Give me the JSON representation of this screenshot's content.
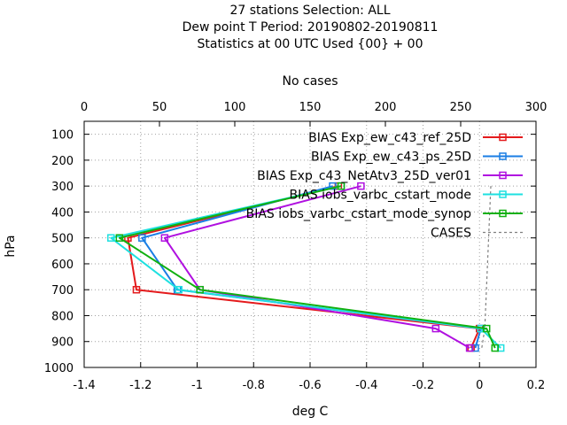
{
  "header": {
    "line1": "27 stations Selection: ALL",
    "line2": "Dew point T  Period: 20190802-20190811",
    "line3": "Statistics at 00 UTC  Used {00} + 00"
  },
  "chart_data": {
    "type": "line",
    "x2label": "No cases",
    "xlabel": "deg C",
    "ylabel": "hPa",
    "xlim": [
      -1.4,
      0.2
    ],
    "x2lim": [
      0,
      300
    ],
    "ylim": [
      1000,
      50
    ],
    "y_reversed": true,
    "xticks": [
      "-1.4",
      "-1.2",
      "-1",
      "-0.8",
      "-0.6",
      "-0.4",
      "-0.2",
      "0",
      "0.2"
    ],
    "x2ticks": [
      "0",
      "50",
      "100",
      "150",
      "200",
      "250",
      "300"
    ],
    "yticks": [
      "100",
      "200",
      "300",
      "400",
      "500",
      "600",
      "700",
      "800",
      "900",
      "1000"
    ],
    "grid": true,
    "legend_position": "top-right",
    "series": [
      {
        "name": "BIAS Exp_ew_c43_ref_25D",
        "color": "#e41a1c",
        "points": [
          {
            "x": -0.5,
            "y": 300
          },
          {
            "x": -1.245,
            "y": 500
          },
          {
            "x": -1.215,
            "y": 700
          },
          {
            "x": 0.0,
            "y": 850
          },
          {
            "x": -0.03,
            "y": 925
          }
        ]
      },
      {
        "name": "BIAS Exp_ew_c43_ps_25D",
        "color": "#1a7ee4",
        "points": [
          {
            "x": -0.52,
            "y": 300
          },
          {
            "x": -1.195,
            "y": 500
          },
          {
            "x": -1.07,
            "y": 700
          },
          {
            "x": 0.005,
            "y": 850
          },
          {
            "x": -0.015,
            "y": 925
          }
        ]
      },
      {
        "name": "BIAS Exp_c43_NetAtv3_25D_ver01",
        "color": "#b010e0",
        "points": [
          {
            "x": -0.42,
            "y": 300
          },
          {
            "x": -1.115,
            "y": 500
          },
          {
            "x": -0.99,
            "y": 700
          },
          {
            "x": -0.155,
            "y": 850
          },
          {
            "x": -0.035,
            "y": 925
          }
        ]
      },
      {
        "name": "BIAS iobs_varbc_cstart_mode",
        "color": "#1ee0e0",
        "points": [
          {
            "x": -0.49,
            "y": 300
          },
          {
            "x": -1.305,
            "y": 500
          },
          {
            "x": -1.065,
            "y": 700
          },
          {
            "x": 0.005,
            "y": 850
          },
          {
            "x": 0.075,
            "y": 925
          }
        ]
      },
      {
        "name": "BIAS iobs_varbc_cstart_mode_synop",
        "color": "#10b010",
        "points": [
          {
            "x": -0.49,
            "y": 300
          },
          {
            "x": -1.275,
            "y": 500
          },
          {
            "x": -0.99,
            "y": 700
          },
          {
            "x": 0.025,
            "y": 850
          },
          {
            "x": 0.055,
            "y": 925
          }
        ]
      }
    ],
    "cases": {
      "name": "CASES",
      "color": "#808080",
      "points": [
        {
          "n": 270,
          "y": 300
        },
        {
          "n": 266,
          "y": 850
        },
        {
          "n": 264,
          "y": 925
        }
      ]
    }
  }
}
